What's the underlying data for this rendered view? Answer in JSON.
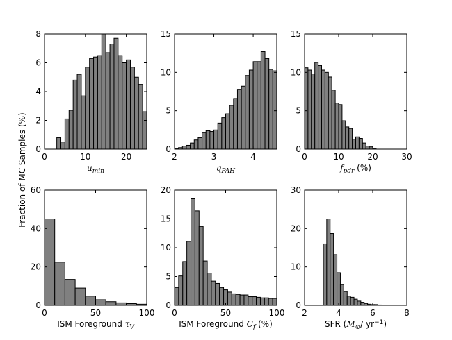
{
  "figure": {
    "ylabel": "Fraction of MC Samples (%)",
    "colors": {
      "bar_fill": "#808080",
      "edge": "#000000",
      "background": "#ffffff"
    }
  },
  "chart_data": [
    {
      "type": "bar",
      "id": "umin",
      "xlabel": [
        {
          "t": "u",
          "style": "it"
        },
        {
          "t": "min",
          "style": "sub"
        }
      ],
      "xlim": [
        0,
        25
      ],
      "ylim": [
        0,
        8
      ],
      "xticks": [
        0,
        10,
        20
      ],
      "yticks": [
        0,
        2,
        4,
        6,
        8
      ],
      "bin_start": 3,
      "bin_width": 1,
      "values": [
        0.8,
        0.5,
        2.1,
        2.7,
        4.8,
        5.2,
        3.7,
        5.7,
        6.3,
        6.4,
        6.5,
        8.0,
        6.7,
        7.3,
        7.7,
        6.5,
        6.0,
        6.2,
        5.7,
        5.0,
        4.5,
        2.6
      ]
    },
    {
      "type": "bar",
      "id": "qpah",
      "xlabel": [
        {
          "t": "q",
          "style": "it"
        },
        {
          "t": "PAH",
          "style": "sub"
        }
      ],
      "xlim": [
        2,
        4.6
      ],
      "ylim": [
        0,
        15
      ],
      "xticks": [
        2,
        3,
        4
      ],
      "yticks": [
        0,
        5,
        10,
        15
      ],
      "bin_start": 2,
      "bin_width": 0.1,
      "values": [
        0.1,
        0.2,
        0.4,
        0.5,
        0.8,
        1.2,
        1.5,
        2.2,
        2.4,
        2.3,
        2.5,
        3.4,
        4.1,
        4.6,
        5.7,
        6.6,
        7.8,
        8.2,
        9.6,
        10.3,
        11.4,
        11.4,
        12.7,
        11.8,
        10.4,
        10.2
      ]
    },
    {
      "type": "bar",
      "id": "fpdr",
      "xlabel": [
        {
          "t": "f",
          "style": "it"
        },
        {
          "t": "pdr",
          "style": "sub"
        },
        {
          "t": " (%)",
          "style": "rm"
        }
      ],
      "xlim": [
        0,
        30
      ],
      "ylim": [
        0,
        15
      ],
      "xticks": [
        0,
        10,
        20,
        30
      ],
      "yticks": [
        0,
        5,
        10,
        15
      ],
      "bin_start": 0,
      "bin_width": 1,
      "values": [
        10.6,
        10.3,
        9.8,
        11.3,
        10.9,
        10.3,
        10.0,
        9.4,
        7.7,
        6.0,
        5.8,
        3.7,
        2.9,
        2.7,
        1.3,
        1.6,
        1.4,
        0.8,
        0.4,
        0.3,
        0.1
      ]
    },
    {
      "type": "bar",
      "id": "tauv",
      "xlabel": [
        {
          "t": "ISM Foreground ",
          "style": "rm"
        },
        {
          "t": "τ",
          "style": "it"
        },
        {
          "t": "V",
          "style": "sub"
        }
      ],
      "xlim": [
        0,
        100
      ],
      "ylim": [
        0,
        60
      ],
      "xticks": [
        0,
        50,
        100
      ],
      "yticks": [
        0,
        20,
        40,
        60
      ],
      "bin_start": 0,
      "bin_width": 10,
      "values": [
        45,
        22.5,
        13.5,
        9,
        4.8,
        2.9,
        1.9,
        1.3,
        0.9,
        0.6
      ]
    },
    {
      "type": "bar",
      "id": "cf",
      "xlabel": [
        {
          "t": "ISM Foreground ",
          "style": "rm"
        },
        {
          "t": "C",
          "style": "it"
        },
        {
          "t": "f",
          "style": "sub"
        },
        {
          "t": "  (%)",
          "style": "rm"
        }
      ],
      "xlim": [
        0,
        100
      ],
      "ylim": [
        0,
        20
      ],
      "xticks": [
        0,
        50,
        100
      ],
      "yticks": [
        0,
        5,
        10,
        15,
        20
      ],
      "bin_start": 0,
      "bin_width": 4,
      "values": [
        3.1,
        5.1,
        7.6,
        11.1,
        18.5,
        16.4,
        13.7,
        7.7,
        5.6,
        4.2,
        3.8,
        3.1,
        2.7,
        2.3,
        2.0,
        1.9,
        1.8,
        1.8,
        1.5,
        1.5,
        1.4,
        1.3,
        1.3,
        1.2,
        1.2
      ]
    },
    {
      "type": "bar",
      "id": "sfr",
      "xlabel": [
        {
          "t": "SFR (",
          "style": "rm"
        },
        {
          "t": "M",
          "style": "it"
        },
        {
          "t": "⊙",
          "style": "sub"
        },
        {
          "t": "/ yr",
          "style": "rm"
        },
        {
          "t": "−1",
          "style": "sup"
        },
        {
          "t": ")",
          "style": "rm"
        }
      ],
      "xlim": [
        2,
        8
      ],
      "ylim": [
        0,
        30
      ],
      "xticks": [
        2,
        4,
        6,
        8
      ],
      "yticks": [
        0,
        10,
        20,
        30
      ],
      "bin_start": 3.1,
      "bin_width": 0.2,
      "values": [
        16.0,
        22.5,
        18.7,
        13.2,
        8.5,
        5.4,
        3.6,
        2.4,
        2.1,
        1.6,
        1.1,
        0.8,
        0.5,
        0.3,
        0.2,
        0.2,
        0.1,
        0.05,
        0.05,
        0.05
      ]
    }
  ]
}
